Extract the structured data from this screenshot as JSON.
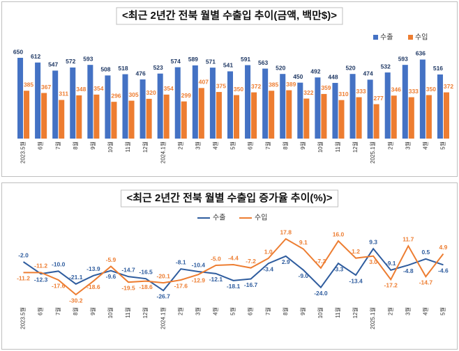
{
  "chart_data": [
    {
      "type": "bar",
      "title": "<최근 2년간 전북 월별 수출입 추이(금액, 백만$)>",
      "categories": [
        "2023.5월",
        "6월",
        "7월",
        "8월",
        "9월",
        "10월",
        "11월",
        "12월",
        "2024.1월",
        "2월",
        "3월",
        "4월",
        "5월",
        "6월",
        "7월",
        "8월",
        "9월",
        "10월",
        "11월",
        "12월",
        "2025.1월",
        "2월",
        "3월",
        "4월",
        "5월"
      ],
      "series": [
        {
          "name": "수출",
          "color": "#4472c4",
          "values": [
            650,
            612,
            547,
            572,
            593,
            508,
            518,
            476,
            523,
            574,
            589,
            571,
            541,
            591,
            563,
            520,
            450,
            492,
            448,
            520,
            474,
            532,
            593,
            636,
            516
          ]
        },
        {
          "name": "수입",
          "color": "#ed7d31",
          "values": [
            385,
            367,
            311,
            348,
            354,
            296,
            305,
            320,
            354,
            299,
            407,
            375,
            350,
            372,
            385,
            389,
            322,
            359,
            310,
            333,
            277,
            346,
            333,
            350,
            372
          ]
        }
      ],
      "legend": "top-right"
    },
    {
      "type": "line",
      "title": "<최근 2년간 전북 월별 수출입 증가율 추이(%)>",
      "categories": [
        "2023.5월",
        "6월",
        "7월",
        "8월",
        "9월",
        "10월",
        "11월",
        "12월",
        "2024.1월",
        "2월",
        "3월",
        "4월",
        "5월",
        "6월",
        "7월",
        "8월",
        "9월",
        "10월",
        "11월",
        "12월",
        "2025.1월",
        "2월",
        "3월",
        "4월",
        "5월"
      ],
      "series": [
        {
          "name": "수출",
          "color": "#2e5c9e",
          "values": [
            -2.0,
            -12.3,
            -10.0,
            -21.1,
            -13.9,
            -9.6,
            -14.7,
            -16.5,
            -26.7,
            -8.1,
            -10.4,
            -12.1,
            -18.1,
            -16.7,
            -3.4,
            2.9,
            -9.0,
            -24.0,
            -3.3,
            -13.4,
            9.3,
            -9.1,
            -4.8,
            0.5,
            -4.6
          ],
          "value_labels": [
            "-2.0",
            "-12.3",
            "-10.0",
            "-21.1",
            "-13.9",
            "-9.6",
            "-14.7",
            "-16.5",
            "-26.7",
            "-8.1",
            "-10.4",
            "-12.1",
            "-18.1",
            "-16.7",
            "-3.4",
            "2.9",
            "-9.0",
            "-24.0",
            "-3.3",
            "-13.4",
            "9.3",
            "-9.1",
            "-4.8",
            "0.5",
            "-4.6"
          ]
        },
        {
          "name": "수입",
          "color": "#ed7d31",
          "values": [
            -11.2,
            -11.2,
            -17.6,
            -30.2,
            -18.6,
            -5.9,
            -19.5,
            -18.6,
            -20.1,
            -17.6,
            -12.9,
            -5.0,
            -4.4,
            -7.2,
            1.0,
            17.8,
            9.1,
            -7.3,
            16.0,
            1.2,
            3.0,
            -17.2,
            11.7,
            -14.7,
            4.9
          ],
          "value_labels": [
            "-11.2",
            "-11.2",
            "-17.6",
            "-30.2",
            "-18.6",
            "-5.9",
            "-19.5",
            "-18.6",
            "-20.1",
            "-17.6",
            "-12.9",
            "-5.0",
            "-4.4",
            "-7.2",
            "1.0",
            "17.8",
            "9.1",
            "-7.3",
            "16.0",
            "1.2",
            "3.0",
            "-17.2",
            "11.7",
            "-14.7",
            "4.9"
          ]
        }
      ],
      "legend": "top-center"
    }
  ]
}
